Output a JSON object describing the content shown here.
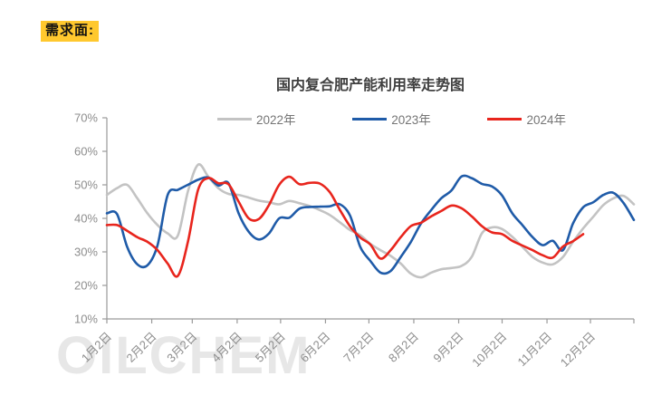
{
  "page": {
    "demand_label": "需求面:",
    "watermark": "OILCHEM"
  },
  "chart_data": {
    "type": "line",
    "title": "国内复合肥产能利用率走势图",
    "xlabel": "",
    "ylabel": "",
    "y_unit": "%",
    "ylim": [
      10,
      70
    ],
    "y_tick_labels": [
      "70%",
      "60%",
      "50%",
      "40%",
      "30%",
      "20%",
      "10%"
    ],
    "x_tick_labels": [
      "1月2日",
      "2月2日",
      "3月2日",
      "4月2日",
      "5月2日",
      "6月2日",
      "7月2日",
      "8月2日",
      "9月2日",
      "10月2日",
      "11月2日",
      "12月2日"
    ],
    "x_unit": "weekly capacity-utilization readings, week 0 = Jan 2",
    "grid": false,
    "legend_position": "top",
    "axis_color": "#9a9a9a",
    "label_color": "#8d8d8d",
    "series": [
      {
        "name": "2022年",
        "color": "#c3c3c3",
        "values": [
          47,
          49,
          50,
          46,
          41.5,
          38,
          35.5,
          34.8,
          48,
          56,
          52.5,
          49,
          47.3,
          47,
          46.2,
          45.3,
          44.8,
          44.2,
          45.2,
          44.5,
          43.7,
          42.5,
          41,
          38.8,
          36.5,
          35,
          32.4,
          30.5,
          28.8,
          26.5,
          23.5,
          22.4,
          23.8,
          24.8,
          25.2,
          25.8,
          28.5,
          35.5,
          37.3,
          36.8,
          34.5,
          31.5,
          28.5,
          26.8,
          26.3,
          28.5,
          33,
          37,
          40.5,
          44,
          46,
          46.7,
          44.2
        ]
      },
      {
        "name": "2023年",
        "color": "#1f5ba8",
        "values": [
          41.5,
          41.3,
          31.5,
          26.3,
          26,
          32,
          47,
          48.5,
          50,
          51.5,
          52.2,
          49.8,
          50.5,
          41.5,
          36,
          33.7,
          35.5,
          40,
          40.2,
          42.9,
          43.4,
          43.5,
          43.6,
          44.2,
          40.8,
          31.5,
          27.3,
          23.8,
          24.3,
          28.5,
          33,
          38.5,
          42.5,
          46,
          48.3,
          52.5,
          52,
          50.3,
          49.5,
          46.8,
          41.5,
          38,
          34.4,
          32,
          33.3,
          30.5,
          38.5,
          43.3,
          44.8,
          47,
          47.6,
          44.5,
          39.5
        ]
      },
      {
        "name": "2024年",
        "color": "#e8251d",
        "values": [
          38,
          38,
          36.3,
          34.4,
          33,
          30.5,
          26.5,
          22.8,
          33,
          48.5,
          52,
          50.5,
          50.2,
          45,
          40,
          39.8,
          44,
          50,
          52.4,
          50.2,
          50.6,
          50.4,
          47.8,
          42.5,
          37.6,
          34.3,
          32.2,
          28,
          30.5,
          34.4,
          37.7,
          38.7,
          40.6,
          42.2,
          43.8,
          43,
          40.6,
          37.7,
          35.8,
          35.3,
          33.3,
          31.9,
          30.5,
          29,
          28.3,
          31.6,
          33.2,
          35.3
        ]
      }
    ]
  }
}
